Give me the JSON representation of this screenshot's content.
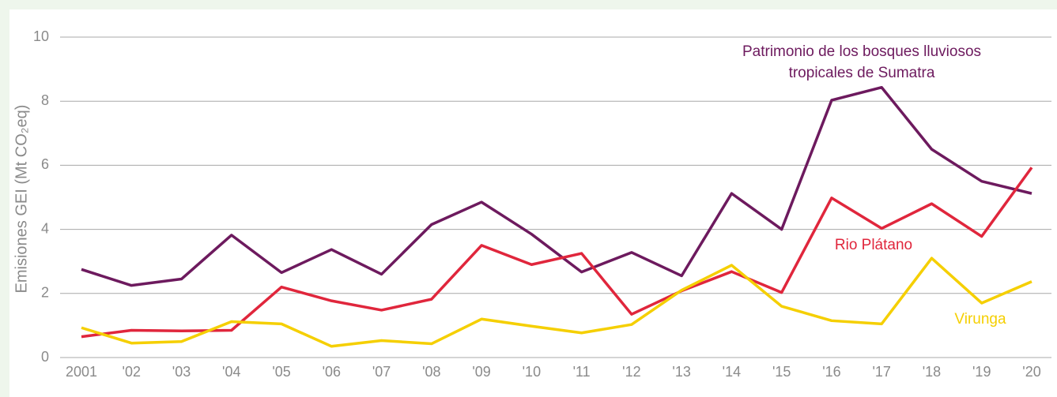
{
  "chart_data": {
    "type": "line",
    "y_label": "Emisiones GEI  (Mt CO₂eq)",
    "categories": [
      "2001",
      "'02",
      "'03",
      "'04",
      "'05",
      "'06",
      "'07",
      "'08",
      "'09",
      "'10",
      "'11",
      "'12",
      "'13",
      "'14",
      "'15",
      "'16",
      "'17",
      "'18",
      "'19",
      "'20"
    ],
    "series": [
      {
        "name": "Patrimonio de los bosques lluviosos tropicales de Sumatra",
        "color": "#6d1a5e",
        "values": [
          2.75,
          2.25,
          2.45,
          3.82,
          2.65,
          3.37,
          2.6,
          4.15,
          4.85,
          3.85,
          2.67,
          3.28,
          2.55,
          5.12,
          4.0,
          8.03,
          8.43,
          6.5,
          5.5,
          5.12
        ]
      },
      {
        "name": "Rio Plátano",
        "color": "#e0263c",
        "values": [
          0.65,
          0.85,
          0.83,
          0.85,
          2.2,
          1.77,
          1.48,
          1.82,
          3.5,
          2.9,
          3.25,
          1.35,
          2.08,
          2.68,
          2.03,
          4.98,
          4.03,
          4.8,
          3.78,
          5.93
        ]
      },
      {
        "name": "Virunga",
        "color": "#f5cf00",
        "values": [
          0.93,
          0.45,
          0.5,
          1.12,
          1.05,
          0.35,
          0.53,
          0.43,
          1.2,
          0.98,
          0.77,
          1.03,
          2.1,
          2.88,
          1.6,
          1.15,
          1.05,
          3.1,
          1.7,
          2.37
        ]
      }
    ],
    "ylim": [
      0,
      10
    ],
    "yticks": [
      0,
      2,
      4,
      6,
      8,
      10
    ],
    "grid": true
  }
}
